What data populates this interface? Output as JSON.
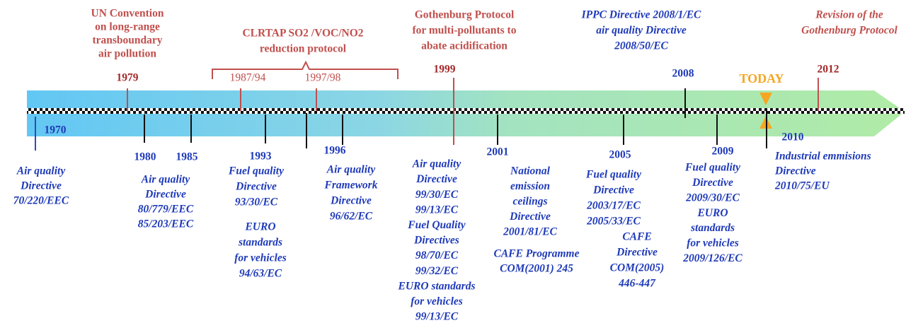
{
  "today": "TODAY",
  "above": [
    {
      "year": "1979",
      "lines": [
        "UN Convention",
        "on long-range",
        "transboundary",
        "air pollution"
      ]
    },
    {
      "years": [
        "1987/94",
        "1997/98"
      ],
      "lines": [
        "CLRTAP  SO2 /VOC/NO2",
        "reduction protocol"
      ]
    },
    {
      "year": "1999",
      "lines": [
        "Gothenburg Protocol",
        "for multi-pollutants to",
        "abate acidification"
      ]
    },
    {
      "year": "2008",
      "lines": [
        "IPPC Directive 2008/1/EC",
        "air quality Directive",
        "2008/50/EC"
      ]
    },
    {
      "year": "2012",
      "lines": [
        "Revision of the",
        "Gothenburg Protocol"
      ]
    }
  ],
  "below": [
    {
      "year": "1970",
      "groups": [
        [
          "Air quality",
          "Directive",
          "70/220/EEC"
        ]
      ]
    },
    {
      "year": "1980",
      "groups": [
        [
          "Air quality",
          "Directive",
          "80/779/EEC",
          "85/203/EEC"
        ]
      ]
    },
    {
      "year": "1985",
      "groups": []
    },
    {
      "year": "1993",
      "groups": [
        [
          "Fuel quality",
          "Directive",
          "93/30/EC"
        ],
        [
          "EURO",
          "standards",
          "for vehicles",
          "94/63/EC"
        ]
      ]
    },
    {
      "year": "1996",
      "groups": [
        [
          "Air quality",
          "Framework",
          "Directive",
          "96/62/EC"
        ]
      ]
    },
    {
      "groups": [
        [
          "Air quality",
          "Directive",
          "99/30/EC",
          "99/13/EC",
          "Fuel Quality",
          "Directives",
          "98/70/EC",
          "99/32/EC",
          "EURO standards",
          "for vehicles",
          "99/13/EC"
        ]
      ]
    },
    {
      "year": "2001",
      "groups": [
        [
          "National",
          "emission",
          "ceilings",
          "Directive",
          "2001/81/EC"
        ],
        [
          "CAFE Programme",
          "COM(2001) 245"
        ]
      ]
    },
    {
      "year": "2005",
      "groups": [
        [
          "Fuel quality",
          "Directive",
          "2003/17/EC",
          "2005/33/EC"
        ],
        [
          "CAFE",
          "Directive",
          "COM(2005)",
          "446-447"
        ]
      ]
    },
    {
      "year": "2009",
      "groups": [
        [
          "Fuel quality",
          "Directive",
          "2009/30/EC",
          "EURO",
          "standards",
          "for vehicles",
          "2009/126/EC"
        ]
      ]
    },
    {
      "year": "2010",
      "groups": [
        [
          "Industrial emmisions",
          "Directive",
          "2010/75/EU"
        ]
      ]
    }
  ]
}
